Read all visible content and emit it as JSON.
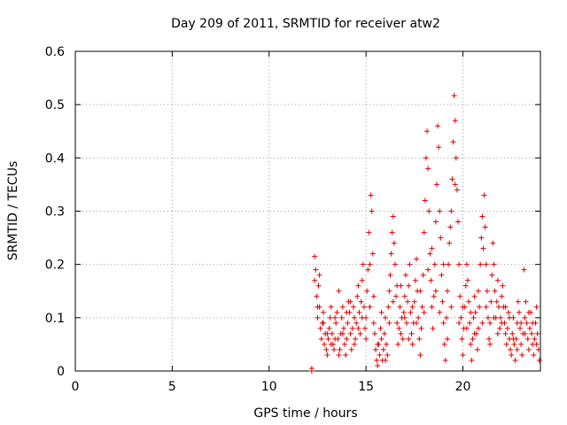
{
  "chart_data": {
    "type": "scatter",
    "title": "Day 209 of 2011, SRMTID for receiver atw2",
    "xlabel": "GPS time / hours",
    "ylabel": "SRMTID / TECUs",
    "xlim": [
      0,
      24
    ],
    "ylim": [
      0,
      0.6
    ],
    "xticks": [
      0,
      5,
      10,
      15,
      20
    ],
    "yticks": [
      0,
      0.1,
      0.2,
      0.3,
      0.4,
      0.5,
      0.6
    ],
    "x_tick_labels": [
      "0",
      "5",
      "10",
      "15",
      "20"
    ],
    "y_tick_labels": [
      "0",
      "0.1",
      "0.2",
      "0.3",
      "0.4",
      "0.5",
      "0.6"
    ],
    "grid": true,
    "marker": "+",
    "colors": {
      "points": "#e00000",
      "grid": "#a0a0a0",
      "axes": "#000000"
    },
    "series": [
      {
        "points": [
          [
            12.2,
            0.0
          ],
          [
            12.2,
            0.005
          ],
          [
            12.35,
            0.215
          ],
          [
            12.35,
            0.17
          ],
          [
            12.4,
            0.19
          ],
          [
            12.45,
            0.14
          ],
          [
            12.5,
            0.1
          ],
          [
            12.55,
            0.16
          ],
          [
            12.6,
            0.12
          ],
          [
            12.65,
            0.08
          ],
          [
            12.7,
            0.06
          ],
          [
            12.75,
            0.09
          ],
          [
            12.8,
            0.11
          ],
          [
            12.85,
            0.05
          ],
          [
            12.9,
            0.07
          ],
          [
            12.95,
            0.04
          ],
          [
            13.0,
            0.03
          ],
          [
            13.05,
            0.06
          ],
          [
            13.1,
            0.08
          ],
          [
            13.15,
            0.1
          ],
          [
            13.2,
            0.12
          ],
          [
            13.25,
            0.07
          ],
          [
            13.3,
            0.05
          ],
          [
            13.35,
            0.04
          ],
          [
            13.4,
            0.06
          ],
          [
            13.45,
            0.09
          ],
          [
            13.5,
            0.11
          ],
          [
            13.55,
            0.06
          ],
          [
            13.6,
            0.15
          ],
          [
            13.65,
            0.04
          ],
          [
            13.7,
            0.07
          ],
          [
            13.75,
            0.1
          ],
          [
            13.8,
            0.12
          ],
          [
            13.85,
            0.08
          ],
          [
            13.9,
            0.05
          ],
          [
            13.95,
            0.03
          ],
          [
            14.0,
            0.06
          ],
          [
            14.05,
            0.09
          ],
          [
            14.1,
            0.13
          ],
          [
            14.15,
            0.11
          ],
          [
            14.2,
            0.07
          ],
          [
            14.25,
            0.04
          ],
          [
            14.3,
            0.08
          ],
          [
            14.35,
            0.12
          ],
          [
            14.4,
            0.1
          ],
          [
            14.45,
            0.06
          ],
          [
            14.5,
            0.09
          ],
          [
            14.55,
            0.14
          ],
          [
            14.6,
            0.16
          ],
          [
            14.65,
            0.11
          ],
          [
            14.7,
            0.07
          ],
          [
            14.75,
            0.13
          ],
          [
            14.8,
            0.17
          ],
          [
            14.85,
            0.2
          ],
          [
            14.9,
            0.12
          ],
          [
            14.95,
            0.08
          ],
          [
            15.0,
            0.1
          ],
          [
            15.05,
            0.15
          ],
          [
            15.1,
            0.19
          ],
          [
            15.15,
            0.26
          ],
          [
            15.2,
            0.2
          ],
          [
            15.25,
            0.33
          ],
          [
            15.3,
            0.3
          ],
          [
            15.35,
            0.22
          ],
          [
            15.4,
            0.14
          ],
          [
            15.45,
            0.07
          ],
          [
            15.5,
            0.04
          ],
          [
            15.55,
            0.02
          ],
          [
            15.6,
            0.01
          ],
          [
            15.65,
            0.05
          ],
          [
            15.7,
            0.03
          ],
          [
            15.75,
            0.08
          ],
          [
            15.8,
            0.06
          ],
          [
            15.85,
            0.02
          ],
          [
            15.9,
            0.04
          ],
          [
            15.95,
            0.07
          ],
          [
            16.0,
            0.1
          ],
          [
            16.05,
            0.05
          ],
          [
            16.1,
            0.03
          ],
          [
            16.15,
            0.12
          ],
          [
            16.2,
            0.15
          ],
          [
            16.25,
            0.18
          ],
          [
            16.3,
            0.22
          ],
          [
            16.35,
            0.26
          ],
          [
            16.4,
            0.29
          ],
          [
            16.45,
            0.24
          ],
          [
            16.5,
            0.2
          ],
          [
            16.55,
            0.14
          ],
          [
            16.6,
            0.09
          ],
          [
            16.65,
            0.05
          ],
          [
            16.7,
            0.08
          ],
          [
            16.75,
            0.12
          ],
          [
            16.8,
            0.16
          ],
          [
            16.85,
            0.1
          ],
          [
            16.9,
            0.06
          ],
          [
            16.95,
            0.11
          ],
          [
            17.0,
            0.14
          ],
          [
            17.05,
            0.18
          ],
          [
            17.1,
            0.09
          ],
          [
            17.15,
            0.13
          ],
          [
            17.2,
            0.16
          ],
          [
            17.25,
            0.2
          ],
          [
            17.3,
            0.11
          ],
          [
            17.35,
            0.07
          ],
          [
            17.4,
            0.05
          ],
          [
            17.45,
            0.09
          ],
          [
            17.5,
            0.13
          ],
          [
            17.55,
            0.17
          ],
          [
            17.6,
            0.21
          ],
          [
            17.65,
            0.15
          ],
          [
            17.7,
            0.1
          ],
          [
            17.75,
            0.06
          ],
          [
            17.8,
            0.03
          ],
          [
            17.85,
            0.08
          ],
          [
            17.9,
            0.12
          ],
          [
            17.95,
            0.18
          ],
          [
            18.0,
            0.26
          ],
          [
            18.05,
            0.32
          ],
          [
            18.1,
            0.4
          ],
          [
            18.15,
            0.45
          ],
          [
            18.2,
            0.38
          ],
          [
            18.25,
            0.3
          ],
          [
            18.3,
            0.22
          ],
          [
            18.35,
            0.17
          ],
          [
            18.4,
            0.12
          ],
          [
            18.45,
            0.08
          ],
          [
            18.5,
            0.14
          ],
          [
            18.55,
            0.2
          ],
          [
            18.6,
            0.28
          ],
          [
            18.65,
            0.35
          ],
          [
            18.7,
            0.46
          ],
          [
            18.75,
            0.42
          ],
          [
            18.8,
            0.3
          ],
          [
            18.85,
            0.25
          ],
          [
            18.9,
            0.18
          ],
          [
            18.95,
            0.13
          ],
          [
            19.0,
            0.09
          ],
          [
            19.05,
            0.05
          ],
          [
            19.1,
            0.02
          ],
          [
            19.15,
            0.1
          ],
          [
            19.2,
            0.15
          ],
          [
            19.25,
            0.2
          ],
          [
            19.3,
            0.24
          ],
          [
            19.35,
            0.27
          ],
          [
            19.4,
            0.3
          ],
          [
            19.45,
            0.36
          ],
          [
            19.5,
            0.43
          ],
          [
            19.55,
            0.517
          ],
          [
            19.6,
            0.47
          ],
          [
            19.65,
            0.4
          ],
          [
            19.7,
            0.34
          ],
          [
            19.75,
            0.28
          ],
          [
            19.8,
            0.2
          ],
          [
            19.85,
            0.14
          ],
          [
            19.9,
            0.1
          ],
          [
            19.95,
            0.06
          ],
          [
            20.0,
            0.03
          ],
          [
            20.05,
            0.08
          ],
          [
            20.1,
            0.12
          ],
          [
            20.15,
            0.16
          ],
          [
            20.2,
            0.2
          ],
          [
            20.25,
            0.17
          ],
          [
            20.3,
            0.13
          ],
          [
            20.35,
            0.09
          ],
          [
            20.4,
            0.05
          ],
          [
            20.45,
            0.02
          ],
          [
            20.5,
            0.06
          ],
          [
            20.55,
            0.1
          ],
          [
            20.6,
            0.14
          ],
          [
            20.65,
            0.11
          ],
          [
            20.7,
            0.07
          ],
          [
            20.75,
            0.04
          ],
          [
            20.8,
            0.08
          ],
          [
            20.85,
            0.12
          ],
          [
            20.9,
            0.2
          ],
          [
            20.95,
            0.25
          ],
          [
            21.0,
            0.29
          ],
          [
            21.05,
            0.23
          ],
          [
            21.1,
            0.33
          ],
          [
            21.15,
            0.27
          ],
          [
            21.2,
            0.2
          ],
          [
            21.25,
            0.15
          ],
          [
            21.3,
            0.1
          ],
          [
            21.35,
            0.06
          ],
          [
            21.4,
            0.09
          ],
          [
            21.45,
            0.13
          ],
          [
            21.5,
            0.18
          ],
          [
            21.55,
            0.24
          ],
          [
            21.6,
            0.2
          ],
          [
            21.65,
            0.15
          ],
          [
            21.7,
            0.1
          ],
          [
            21.75,
            0.13
          ],
          [
            21.8,
            0.17
          ],
          [
            21.85,
            0.12
          ],
          [
            21.9,
            0.08
          ],
          [
            21.95,
            0.1
          ],
          [
            22.0,
            0.14
          ],
          [
            22.05,
            0.16
          ],
          [
            22.1,
            0.12
          ],
          [
            22.15,
            0.09
          ],
          [
            22.2,
            0.07
          ],
          [
            22.25,
            0.05
          ],
          [
            22.3,
            0.08
          ],
          [
            22.35,
            0.11
          ],
          [
            22.4,
            0.06
          ],
          [
            22.45,
            0.04
          ],
          [
            22.5,
            0.03
          ],
          [
            22.55,
            0.07
          ],
          [
            22.6,
            0.1
          ],
          [
            22.65,
            0.05
          ],
          [
            22.7,
            0.02
          ],
          [
            22.75,
            0.06
          ],
          [
            22.8,
            0.09
          ],
          [
            22.85,
            0.13
          ],
          [
            22.9,
            0.11
          ],
          [
            22.95,
            0.08
          ],
          [
            23.0,
            0.05
          ],
          [
            23.05,
            0.03
          ],
          [
            23.1,
            0.07
          ],
          [
            23.15,
            0.19
          ],
          [
            23.2,
            0.1
          ],
          [
            23.25,
            0.13
          ],
          [
            23.3,
            0.09
          ],
          [
            23.35,
            0.06
          ],
          [
            23.4,
            0.04
          ],
          [
            23.45,
            0.08
          ],
          [
            23.5,
            0.11
          ],
          [
            23.55,
            0.07
          ],
          [
            23.6,
            0.05
          ],
          [
            23.65,
            0.03
          ],
          [
            23.7,
            0.06
          ],
          [
            23.75,
            0.09
          ],
          [
            23.8,
            0.12
          ],
          [
            23.85,
            0.07
          ],
          [
            23.9,
            0.04
          ],
          [
            23.95,
            0.02
          ],
          [
            12.5,
            0.12
          ],
          [
            12.6,
            0.18
          ],
          [
            12.8,
            0.09
          ],
          [
            13.0,
            0.07
          ],
          [
            13.2,
            0.05
          ],
          [
            13.4,
            0.1
          ],
          [
            13.6,
            0.03
          ],
          [
            13.8,
            0.07
          ],
          [
            14.0,
            0.11
          ],
          [
            14.2,
            0.13
          ],
          [
            14.4,
            0.05
          ],
          [
            14.6,
            0.08
          ],
          [
            14.8,
            0.1
          ],
          [
            15.0,
            0.06
          ],
          [
            15.2,
            0.12
          ],
          [
            15.4,
            0.09
          ],
          [
            15.6,
            0.05
          ],
          [
            15.8,
            0.11
          ],
          [
            16.0,
            0.02
          ],
          [
            16.2,
            0.09
          ],
          [
            16.4,
            0.13
          ],
          [
            16.6,
            0.16
          ],
          [
            16.8,
            0.07
          ],
          [
            17.0,
            0.1
          ],
          [
            17.2,
            0.06
          ],
          [
            17.4,
            0.12
          ],
          [
            17.6,
            0.09
          ],
          [
            17.8,
            0.15
          ],
          [
            18.0,
            0.11
          ],
          [
            18.2,
            0.19
          ],
          [
            18.4,
            0.23
          ],
          [
            18.6,
            0.15
          ],
          [
            18.8,
            0.11
          ],
          [
            19.0,
            0.2
          ],
          [
            19.2,
            0.06
          ],
          [
            19.4,
            0.12
          ],
          [
            19.6,
            0.35
          ],
          [
            19.8,
            0.09
          ],
          [
            20.0,
            0.12
          ],
          [
            20.2,
            0.08
          ],
          [
            20.4,
            0.11
          ],
          [
            20.6,
            0.07
          ],
          [
            20.8,
            0.15
          ],
          [
            21.0,
            0.09
          ],
          [
            21.2,
            0.12
          ],
          [
            21.4,
            0.05
          ],
          [
            21.6,
            0.1
          ],
          [
            21.8,
            0.07
          ],
          [
            22.0,
            0.09
          ],
          [
            22.2,
            0.12
          ],
          [
            22.4,
            0.1
          ],
          [
            22.6,
            0.06
          ],
          [
            22.8,
            0.04
          ],
          [
            23.0,
            0.09
          ],
          [
            23.2,
            0.07
          ],
          [
            23.4,
            0.11
          ],
          [
            23.6,
            0.09
          ],
          [
            23.8,
            0.05
          ]
        ]
      }
    ]
  }
}
